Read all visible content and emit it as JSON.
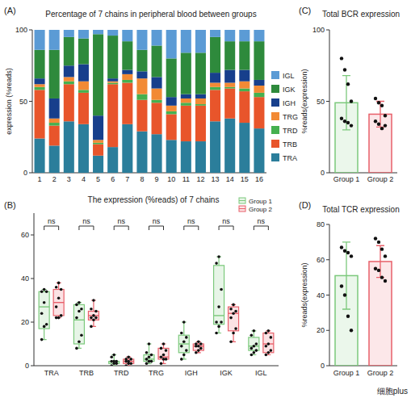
{
  "watermark": "细胞plus",
  "chart_data": [
    {
      "label": "(A)",
      "type": "bar",
      "title": "Percentage of 7 chains in peripheral blood between groups",
      "y_label": "expression (%reads)",
      "categories": [
        "1",
        "2",
        "3",
        "4",
        "5",
        "6",
        "7",
        "8",
        "9",
        "10",
        "11",
        "12",
        "13",
        "14",
        "15",
        "16"
      ],
      "series": [
        {
          "name": "TRA",
          "color": "#2b7e9b",
          "values": [
            24,
            19,
            36,
            34,
            12,
            18,
            34,
            29,
            27,
            23,
            22,
            22,
            36,
            38,
            35,
            31
          ]
        },
        {
          "name": "TRB",
          "color": "#e8552b",
          "values": [
            34,
            14,
            26,
            22,
            8,
            44,
            29,
            22,
            22,
            18,
            25,
            25,
            22,
            21,
            22,
            22
          ]
        },
        {
          "name": "TRD",
          "color": "#45b04f",
          "values": [
            2,
            2,
            2,
            2,
            1,
            1,
            2,
            4,
            2,
            2,
            2,
            1,
            2,
            1,
            2,
            3
          ]
        },
        {
          "name": "TRG",
          "color": "#f28a35",
          "values": [
            2,
            3,
            3,
            6,
            2,
            1,
            4,
            11,
            8,
            4,
            3,
            4,
            3,
            3,
            5,
            5
          ]
        },
        {
          "name": "IGH",
          "color": "#173f8c",
          "values": [
            4,
            14,
            8,
            12,
            17,
            2,
            3,
            5,
            8,
            6,
            3,
            3,
            7,
            9,
            8,
            4
          ]
        },
        {
          "name": "IGK",
          "color": "#2e8a3c",
          "values": [
            20,
            34,
            20,
            18,
            57,
            30,
            20,
            15,
            22,
            27,
            29,
            29,
            25,
            20,
            20,
            27
          ]
        },
        {
          "name": "IGL",
          "color": "#5b9bd5",
          "values": [
            14,
            14,
            5,
            6,
            3,
            4,
            8,
            14,
            11,
            20,
            16,
            16,
            5,
            8,
            8,
            8
          ]
        }
      ],
      "ylim": [
        0,
        100
      ],
      "yticks": [
        0,
        50,
        100
      ],
      "stacked": true,
      "grid": false,
      "legend": "right"
    },
    {
      "label": "(B)",
      "type": "box",
      "title": "The expression (%reads) of 7 chains",
      "categories": [
        "TRA",
        "TRB",
        "TRD",
        "TRG",
        "IGH",
        "IGK",
        "IGL"
      ],
      "series": [
        {
          "name": "Group 1",
          "color": "#7cc97c",
          "boxes": [
            {
              "min": 12,
              "q1": 17,
              "median": 27,
              "q3": 34,
              "max": 35,
              "points": [
                12,
                18,
                19,
                24,
                29,
                34,
                34,
                35
              ]
            },
            {
              "min": 8,
              "q1": 10,
              "median": 21,
              "q3": 28,
              "max": 29,
              "points": [
                8,
                11,
                14,
                22,
                25,
                26,
                28,
                29
              ]
            },
            {
              "min": 0,
              "q1": 1,
              "median": 2,
              "q3": 2,
              "max": 5,
              "points": [
                0,
                1,
                1,
                2,
                2,
                2,
                4,
                5
              ]
            },
            {
              "min": 1,
              "q1": 2,
              "median": 3,
              "q3": 5,
              "max": 10,
              "points": [
                1,
                2,
                2,
                3,
                4,
                5,
                6,
                10
              ]
            },
            {
              "min": 3,
              "q1": 6,
              "median": 10,
              "q3": 14,
              "max": 20,
              "points": [
                3,
                5,
                7,
                9,
                11,
                13,
                15,
                20
              ]
            },
            {
              "min": 15,
              "q1": 19,
              "median": 23,
              "q3": 46,
              "max": 50,
              "points": [
                15,
                18,
                20,
                20,
                27,
                35,
                47,
                50
              ]
            },
            {
              "min": 5,
              "q1": 7,
              "median": 9,
              "q3": 13,
              "max": 16,
              "points": [
                5,
                6,
                7,
                8,
                9,
                10,
                14,
                16
              ]
            }
          ]
        },
        {
          "name": "Group 2",
          "color": "#e8606a",
          "boxes": [
            {
              "min": 22,
              "q1": 23,
              "median": 29,
              "q3": 35,
              "max": 38,
              "points": [
                22,
                22,
                23,
                27,
                31,
                35,
                36,
                38
              ]
            },
            {
              "min": 18,
              "q1": 21,
              "median": 23,
              "q3": 25,
              "max": 30,
              "points": [
                18,
                21,
                22,
                22,
                23,
                25,
                26,
                30
              ]
            },
            {
              "min": 0,
              "q1": 1,
              "median": 2,
              "q3": 3,
              "max": 4,
              "points": [
                0,
                1,
                1,
                2,
                2,
                3,
                3,
                4
              ]
            },
            {
              "min": 1,
              "q1": 3,
              "median": 4,
              "q3": 8,
              "max": 10,
              "points": [
                1,
                3,
                3,
                4,
                5,
                7,
                8,
                10
              ]
            },
            {
              "min": 6,
              "q1": 7,
              "median": 9,
              "q3": 10,
              "max": 11,
              "points": [
                6,
                7,
                8,
                9,
                9,
                10,
                10,
                11
              ]
            },
            {
              "min": 11,
              "q1": 16,
              "median": 24,
              "q3": 27,
              "max": 28,
              "points": [
                11,
                15,
                17,
                22,
                24,
                25,
                26,
                28
              ]
            },
            {
              "min": 5,
              "q1": 6,
              "median": 10,
              "q3": 15,
              "max": 16,
              "points": [
                5,
                6,
                7,
                9,
                10,
                13,
                15,
                16
              ]
            }
          ]
        }
      ],
      "annotations": [
        "ns",
        "ns",
        "ns",
        "ns",
        "ns",
        "ns",
        "ns"
      ],
      "ylim": [
        0,
        70
      ],
      "yticks": [
        0,
        20,
        40,
        60
      ],
      "grid": false,
      "legend": "upper right"
    },
    {
      "label": "(C)",
      "type": "bar",
      "title": "Total BCR expression",
      "y_label": "%reads(expression)",
      "categories": [
        "Group 1",
        "Group 2"
      ],
      "values": [
        49,
        41
      ],
      "errors": [
        19,
        9
      ],
      "points": [
        [
          80,
          72,
          62,
          50,
          38,
          36,
          35,
          33
        ],
        [
          52,
          49,
          47,
          40,
          36,
          34,
          31,
          33
        ]
      ],
      "colors": [
        "#7cc97c",
        "#e8606a"
      ],
      "ylim": [
        0,
        100
      ],
      "yticks": [
        0,
        50,
        100
      ],
      "grid": false
    },
    {
      "label": "(D)",
      "type": "bar",
      "title": "Total TCR expression",
      "y_label": "%reads(expression)",
      "categories": [
        "Group 1",
        "Group 2"
      ],
      "values": [
        51,
        59
      ],
      "errors": [
        19,
        9
      ],
      "points": [
        [
          67,
          65,
          64,
          62,
          45,
          40,
          28,
          20
        ],
        [
          72,
          70,
          66,
          62,
          55,
          54,
          50,
          48
        ]
      ],
      "colors": [
        "#7cc97c",
        "#e8606a"
      ],
      "ylim": [
        0,
        80
      ],
      "yticks": [
        0,
        20,
        40,
        60,
        80
      ],
      "grid": false
    }
  ]
}
